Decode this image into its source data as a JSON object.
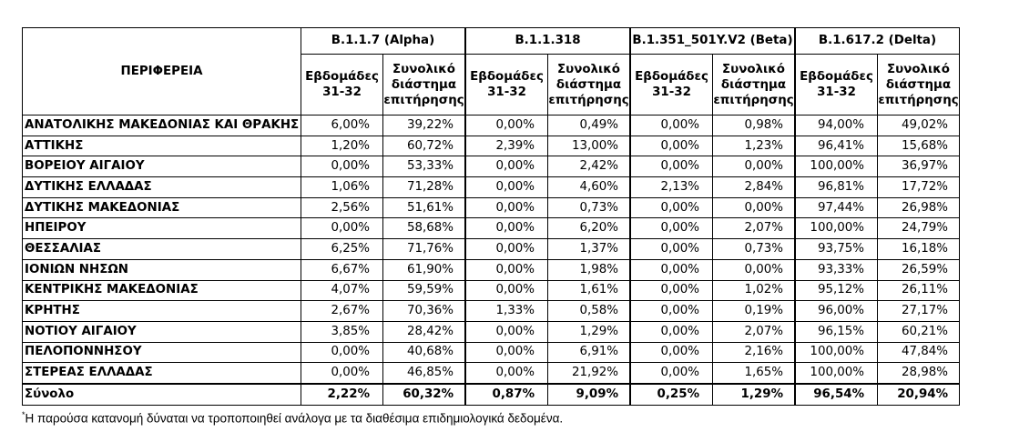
{
  "header": {
    "region_label": "ΠΕΡΙΦΕΡΕΙΑ",
    "variants": [
      "B.1.1.7 (Alpha)",
      "B.1.1.318",
      "B.1.351_501Y.V2 (Beta)",
      "B.1.617.2 (Delta)"
    ],
    "sub_week": "Εβδομάδες 31-32",
    "sub_total": "Συνολικό διάστημα επιτήρησης"
  },
  "rows": [
    {
      "region": "ΑΝΑΤΟΛΙΚΗΣ ΜΑΚΕΔΟΝΙΑΣ ΚΑΙ ΘΡΑΚΗΣ",
      "v": [
        "6,00%",
        "39,22%",
        "0,00%",
        "0,49%",
        "0,00%",
        "0,98%",
        "94,00%",
        "49,02%"
      ]
    },
    {
      "region": "ΑΤΤΙΚΗΣ",
      "v": [
        "1,20%",
        "60,72%",
        "2,39%",
        "13,00%",
        "0,00%",
        "1,23%",
        "96,41%",
        "15,68%"
      ]
    },
    {
      "region": "ΒΟΡΕΙΟΥ ΑΙΓΑΙΟΥ",
      "v": [
        "0,00%",
        "53,33%",
        "0,00%",
        "2,42%",
        "0,00%",
        "0,00%",
        "100,00%",
        "36,97%"
      ]
    },
    {
      "region": "ΔΥΤΙΚΗΣ ΕΛΛΑΔΑΣ",
      "v": [
        "1,06%",
        "71,28%",
        "0,00%",
        "4,60%",
        "2,13%",
        "2,84%",
        "96,81%",
        "17,72%"
      ]
    },
    {
      "region": "ΔΥΤΙΚΗΣ ΜΑΚΕΔΟΝΙΑΣ",
      "v": [
        "2,56%",
        "51,61%",
        "0,00%",
        "0,73%",
        "0,00%",
        "0,00%",
        "97,44%",
        "26,98%"
      ]
    },
    {
      "region": "ΗΠΕΙΡΟΥ",
      "v": [
        "0,00%",
        "58,68%",
        "0,00%",
        "6,20%",
        "0,00%",
        "2,07%",
        "100,00%",
        "24,79%"
      ]
    },
    {
      "region": "ΘΕΣΣΑΛΙΑΣ",
      "v": [
        "6,25%",
        "71,76%",
        "0,00%",
        "1,37%",
        "0,00%",
        "0,73%",
        "93,75%",
        "16,18%"
      ]
    },
    {
      "region": "ΙΟΝΙΩΝ ΝΗΣΩΝ",
      "v": [
        "6,67%",
        "61,90%",
        "0,00%",
        "1,98%",
        "0,00%",
        "0,00%",
        "93,33%",
        "26,59%"
      ]
    },
    {
      "region": "ΚΕΝΤΡΙΚΗΣ ΜΑΚΕΔΟΝΙΑΣ",
      "v": [
        "4,07%",
        "59,59%",
        "0,00%",
        "1,61%",
        "0,00%",
        "1,02%",
        "95,12%",
        "26,11%"
      ]
    },
    {
      "region": "ΚΡΗΤΗΣ",
      "v": [
        "2,67%",
        "70,36%",
        "1,33%",
        "0,58%",
        "0,00%",
        "0,19%",
        "96,00%",
        "27,17%"
      ]
    },
    {
      "region": "ΝΟΤΙΟΥ ΑΙΓΑΙΟΥ",
      "v": [
        "3,85%",
        "28,42%",
        "0,00%",
        "1,29%",
        "0,00%",
        "2,07%",
        "96,15%",
        "60,21%"
      ]
    },
    {
      "region": "ΠΕΛΟΠΟΝΝΗΣΟΥ",
      "v": [
        "0,00%",
        "40,68%",
        "0,00%",
        "6,91%",
        "0,00%",
        "2,16%",
        "100,00%",
        "47,84%"
      ]
    },
    {
      "region": "ΣΤΕΡΕΑΣ ΕΛΛΑΔΑΣ",
      "v": [
        "0,00%",
        "46,85%",
        "0,00%",
        "21,92%",
        "0,00%",
        "1,65%",
        "100,00%",
        "28,98%"
      ]
    }
  ],
  "total": {
    "region": "Σύνολο",
    "v": [
      "2,22%",
      "60,32%",
      "0,87%",
      "9,09%",
      "0,25%",
      "1,29%",
      "96,54%",
      "20,94%"
    ]
  },
  "footnote": {
    "marker": "*",
    "text": "Η παρούσα κατανομή δύναται να τροποποιηθεί ανάλογα με τα διαθέσιμα επιδημιολογικά δεδομένα."
  }
}
